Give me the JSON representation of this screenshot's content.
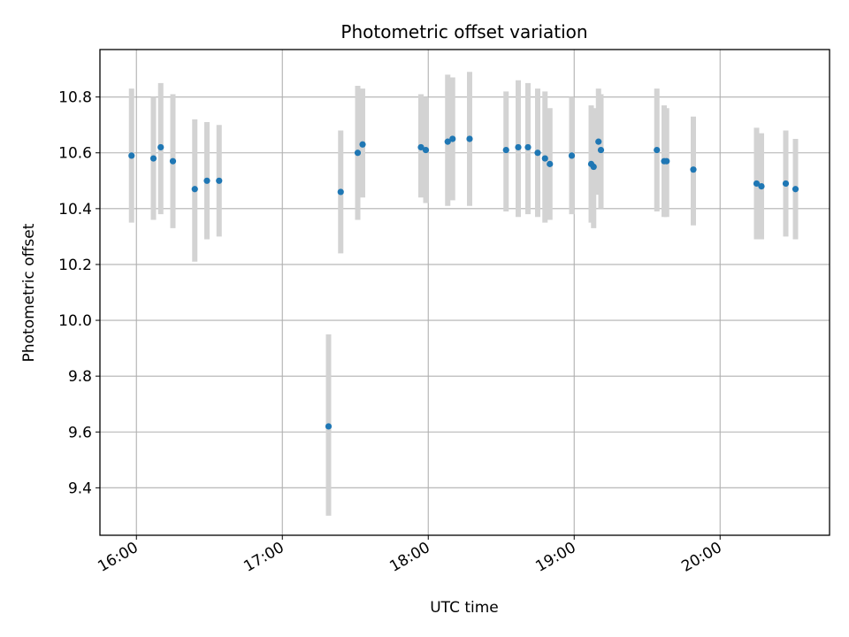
{
  "chart_data": {
    "type": "scatter",
    "title": "Photometric offset variation",
    "xlabel": "UTC time",
    "ylabel": "Photometric offset",
    "x_unit": "hours UTC",
    "xlim": [
      "15:45",
      "20:45"
    ],
    "ylim": [
      9.23,
      10.97
    ],
    "x_ticks": [
      {
        "x": "16:00",
        "label": "16:00"
      },
      {
        "x": "17:00",
        "label": "17:00"
      },
      {
        "x": "18:00",
        "label": "18:00"
      },
      {
        "x": "19:00",
        "label": "19:00"
      },
      {
        "x": "20:00",
        "label": "20:00"
      }
    ],
    "y_ticks": [
      "9.4",
      "9.6",
      "9.8",
      "10.0",
      "10.2",
      "10.4",
      "10.6",
      "10.8"
    ],
    "grid": true,
    "colors": {
      "points": "#1f77b4",
      "errorbars": "#d3d3d3",
      "grid": "#b0b0b0"
    },
    "series": [
      {
        "points": [
          {
            "x": "15:58",
            "y": 10.59,
            "lo": 10.35,
            "hi": 10.83
          },
          {
            "x": "16:07",
            "y": 10.58,
            "lo": 10.36,
            "hi": 10.8
          },
          {
            "x": "16:10",
            "y": 10.62,
            "lo": 10.38,
            "hi": 10.85
          },
          {
            "x": "16:15",
            "y": 10.57,
            "lo": 10.33,
            "hi": 10.81
          },
          {
            "x": "16:24",
            "y": 10.47,
            "lo": 10.21,
            "hi": 10.72
          },
          {
            "x": "16:29",
            "y": 10.5,
            "lo": 10.29,
            "hi": 10.71
          },
          {
            "x": "16:34",
            "y": 10.5,
            "lo": 10.3,
            "hi": 10.7
          },
          {
            "x": "17:19",
            "y": 9.62,
            "lo": 9.3,
            "hi": 9.95
          },
          {
            "x": "17:24",
            "y": 10.46,
            "lo": 10.24,
            "hi": 10.68
          },
          {
            "x": "17:31",
            "y": 10.6,
            "lo": 10.36,
            "hi": 10.84
          },
          {
            "x": "17:33",
            "y": 10.63,
            "lo": 10.44,
            "hi": 10.83
          },
          {
            "x": "17:57",
            "y": 10.62,
            "lo": 10.44,
            "hi": 10.81
          },
          {
            "x": "17:59",
            "y": 10.61,
            "lo": 10.42,
            "hi": 10.8
          },
          {
            "x": "18:08",
            "y": 10.64,
            "lo": 10.41,
            "hi": 10.88
          },
          {
            "x": "18:10",
            "y": 10.65,
            "lo": 10.43,
            "hi": 10.87
          },
          {
            "x": "18:17",
            "y": 10.65,
            "lo": 10.41,
            "hi": 10.89
          },
          {
            "x": "18:32",
            "y": 10.61,
            "lo": 10.39,
            "hi": 10.82
          },
          {
            "x": "18:37",
            "y": 10.62,
            "lo": 10.37,
            "hi": 10.86
          },
          {
            "x": "18:41",
            "y": 10.62,
            "lo": 10.38,
            "hi": 10.85
          },
          {
            "x": "18:45",
            "y": 10.6,
            "lo": 10.37,
            "hi": 10.83
          },
          {
            "x": "18:48",
            "y": 10.58,
            "lo": 10.35,
            "hi": 10.82
          },
          {
            "x": "18:50",
            "y": 10.56,
            "lo": 10.36,
            "hi": 10.76
          },
          {
            "x": "18:59",
            "y": 10.59,
            "lo": 10.38,
            "hi": 10.8
          },
          {
            "x": "19:07",
            "y": 10.56,
            "lo": 10.35,
            "hi": 10.77
          },
          {
            "x": "19:08",
            "y": 10.55,
            "lo": 10.33,
            "hi": 10.76
          },
          {
            "x": "19:10",
            "y": 10.64,
            "lo": 10.45,
            "hi": 10.83
          },
          {
            "x": "19:11",
            "y": 10.61,
            "lo": 10.4,
            "hi": 10.81
          },
          {
            "x": "19:34",
            "y": 10.61,
            "lo": 10.39,
            "hi": 10.83
          },
          {
            "x": "19:37",
            "y": 10.57,
            "lo": 10.37,
            "hi": 10.77
          },
          {
            "x": "19:38",
            "y": 10.57,
            "lo": 10.37,
            "hi": 10.76
          },
          {
            "x": "19:49",
            "y": 10.54,
            "lo": 10.34,
            "hi": 10.73
          },
          {
            "x": "20:15",
            "y": 10.49,
            "lo": 10.29,
            "hi": 10.69
          },
          {
            "x": "20:17",
            "y": 10.48,
            "lo": 10.29,
            "hi": 10.67
          },
          {
            "x": "20:27",
            "y": 10.49,
            "lo": 10.3,
            "hi": 10.68
          },
          {
            "x": "20:31",
            "y": 10.47,
            "lo": 10.29,
            "hi": 10.65
          }
        ]
      }
    ]
  }
}
